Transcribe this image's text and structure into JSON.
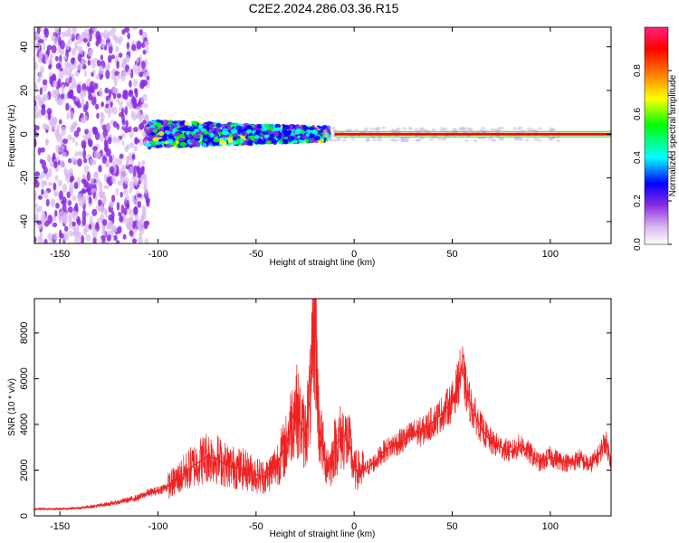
{
  "title": "C2E2.2024.286.03.36.R15",
  "chart_data": [
    {
      "type": "heatmap",
      "xlabel": "Height of straight line (km)",
      "ylabel": "Frequency (Hz)",
      "xlim": [
        -163,
        131
      ],
      "ylim": [
        -50,
        49
      ],
      "x_ticks": [
        -150,
        -100,
        -50,
        0,
        50,
        100
      ],
      "y_ticks": [
        -40,
        -20,
        0,
        20,
        40
      ],
      "colorbar": {
        "label": "Normalized spectral amplitude",
        "range": [
          0,
          1
        ],
        "ticks": [
          0.0,
          0.2,
          0.4,
          0.6,
          0.8
        ],
        "tick_labels": [
          "0.0",
          "0.2",
          "0.4",
          "0.6",
          "0.8"
        ],
        "colormap": [
          "#ffffff",
          "#d8b8f0",
          "#8a2be2",
          "#0000ff",
          "#00ffff",
          "#00ff00",
          "#ffff00",
          "#ff8000",
          "#ff0000",
          "#ff1f7f"
        ]
      },
      "features": [
        {
          "x_range": [
            -163,
            -105
          ],
          "freq_range": [
            -50,
            49
          ],
          "amplitude": "low (purple speckle)"
        },
        {
          "x_range": [
            -105,
            -15
          ],
          "freq_range": [
            -5,
            5
          ],
          "amplitude": "medium (blue/cyan/green)"
        },
        {
          "x_range": [
            -10,
            131
          ],
          "freq_value": 0,
          "amplitude": "high (red line)"
        }
      ]
    },
    {
      "type": "line",
      "xlabel": "Height of straight line (km)",
      "ylabel": "SNR (10 * v/v)",
      "xlim": [
        -163,
        131
      ],
      "ylim": [
        0,
        9500
      ],
      "x_ticks": [
        -150,
        -100,
        -50,
        0,
        50,
        100
      ],
      "y_ticks": [
        0,
        2000,
        4000,
        6000,
        8000
      ],
      "line_color": "#ee2222",
      "series": [
        {
          "x": [
            -163,
            -150,
            -140,
            -130,
            -120,
            -110,
            -105,
            -100,
            -95,
            -90,
            -85,
            -80,
            -75,
            -70,
            -65,
            -60,
            -55,
            -50,
            -45,
            -40,
            -35,
            -30,
            -25,
            -22,
            -20,
            -18,
            -15,
            -12,
            -10,
            -7,
            -5,
            -2,
            0,
            5,
            10,
            15,
            20,
            25,
            30,
            35,
            40,
            45,
            50,
            53,
            55,
            57,
            60,
            65,
            70,
            75,
            80,
            85,
            90,
            95,
            100,
            105,
            110,
            115,
            120,
            125,
            128,
            131
          ],
          "y": [
            300,
            300,
            350,
            450,
            600,
            800,
            1000,
            1100,
            1300,
            1600,
            2000,
            2300,
            2600,
            2500,
            2200,
            2100,
            2000,
            1800,
            1700,
            2200,
            3000,
            4800,
            3500,
            5500,
            9000,
            4000,
            2500,
            2200,
            3000,
            3400,
            3500,
            3000,
            2000,
            2000,
            2300,
            2800,
            3100,
            3300,
            3600,
            3700,
            4100,
            4500,
            5000,
            5800,
            6600,
            5500,
            4700,
            3800,
            3200,
            3000,
            2800,
            3100,
            2700,
            2300,
            2600,
            2400,
            2300,
            2500,
            2200,
            2700,
            3300,
            2400
          ]
        }
      ]
    }
  ]
}
